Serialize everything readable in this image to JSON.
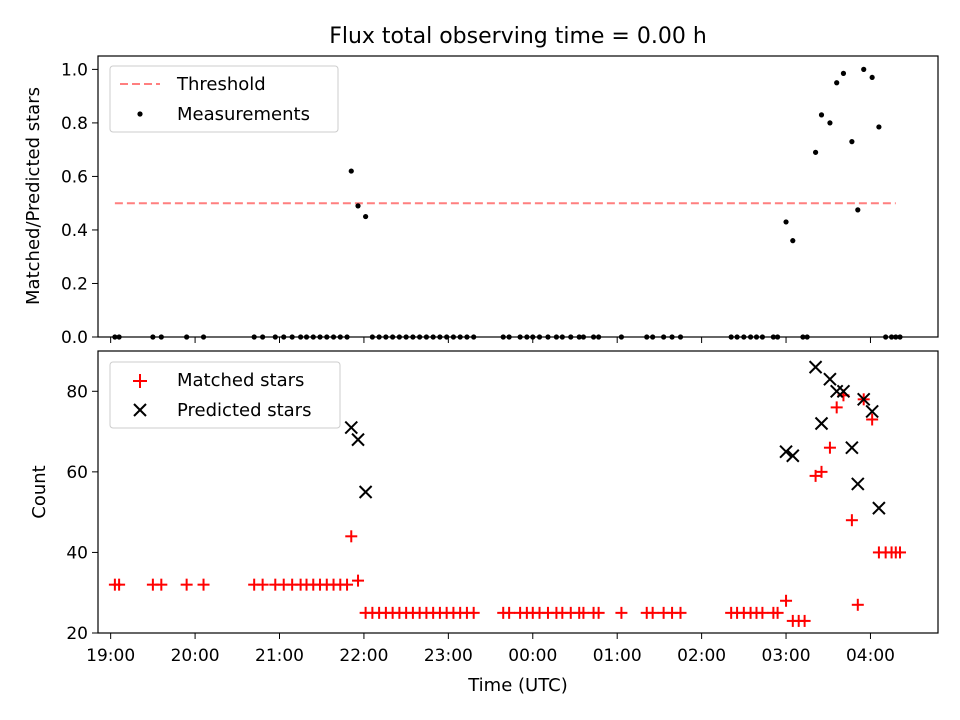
{
  "chart_data": [
    {
      "type": "scatter",
      "title": "Flux total observing time = 0.00 h",
      "xlabel": "",
      "ylabel": "Matched/Predicted stars",
      "xlim": [
        18.85,
        28.8
      ],
      "ylim": [
        0,
        1.05
      ],
      "yticks": [
        0.0,
        0.2,
        0.4,
        0.6,
        0.8,
        1.0
      ],
      "ytick_labels": [
        "0.0",
        "0.2",
        "0.4",
        "0.6",
        "0.8",
        "1.0"
      ],
      "legend_position": "top-left",
      "series": [
        {
          "name": "Threshold",
          "style": "dashed-line",
          "color": "#ff7f7f",
          "x": [
            19.05,
            28.3
          ],
          "y": [
            0.5,
            0.5
          ]
        },
        {
          "name": "Measurements",
          "style": "dot",
          "color": "#000000",
          "x": [
            19.05,
            19.1,
            19.5,
            19.6,
            19.9,
            20.1,
            20.7,
            20.8,
            20.95,
            21.05,
            21.15,
            21.25,
            21.32,
            21.4,
            21.48,
            21.56,
            21.64,
            21.72,
            21.8,
            21.85,
            21.93,
            22.02,
            22.1,
            22.18,
            22.26,
            22.34,
            22.42,
            22.5,
            22.58,
            22.66,
            22.74,
            22.82,
            22.9,
            22.98,
            23.06,
            23.14,
            23.22,
            23.3,
            23.65,
            23.72,
            23.85,
            23.93,
            24.0,
            24.08,
            24.18,
            24.28,
            24.35,
            24.45,
            24.55,
            24.6,
            24.72,
            24.78,
            25.05,
            25.35,
            25.42,
            25.55,
            25.65,
            25.75,
            26.35,
            26.42,
            26.5,
            26.58,
            26.65,
            26.72,
            26.85,
            26.9,
            27.0,
            27.08,
            27.2,
            27.25,
            27.35,
            27.42,
            27.52,
            27.6,
            27.68,
            27.78,
            27.85,
            27.92,
            28.02,
            28.1,
            28.18,
            28.25,
            28.3,
            28.35
          ],
          "y": [
            0,
            0,
            0,
            0,
            0,
            0,
            0,
            0,
            0,
            0,
            0,
            0,
            0,
            0,
            0,
            0,
            0,
            0,
            0,
            0.62,
            0.49,
            0.45,
            0,
            0,
            0,
            0,
            0,
            0,
            0,
            0,
            0,
            0,
            0,
            0,
            0,
            0,
            0,
            0,
            0,
            0,
            0,
            0,
            0,
            0,
            0,
            0,
            0,
            0,
            0,
            0,
            0,
            0,
            0,
            0,
            0,
            0,
            0,
            0,
            0,
            0,
            0,
            0,
            0,
            0,
            0,
            0,
            0.43,
            0.36,
            0,
            0,
            0.69,
            0.83,
            0.8,
            0.95,
            0.985,
            0.73,
            0.475,
            1.0,
            0.97,
            0.785,
            0,
            0,
            0,
            0
          ]
        }
      ]
    },
    {
      "type": "scatter",
      "title": "",
      "xlabel": "Time (UTC)",
      "ylabel": "Count",
      "xlim": [
        18.85,
        28.8
      ],
      "ylim": [
        20,
        90
      ],
      "yticks": [
        20,
        40,
        60,
        80
      ],
      "ytick_labels": [
        "20",
        "40",
        "60",
        "80"
      ],
      "xticks": [
        19,
        20,
        21,
        22,
        23,
        24,
        25,
        26,
        27,
        28
      ],
      "xtick_labels": [
        "19:00",
        "20:00",
        "21:00",
        "22:00",
        "23:00",
        "00:00",
        "01:00",
        "02:00",
        "03:00",
        "04:00"
      ],
      "legend_position": "top-left",
      "series": [
        {
          "name": "Matched stars",
          "marker": "plus",
          "color": "#ff0000",
          "x": [
            19.05,
            19.1,
            19.5,
            19.6,
            19.9,
            20.1,
            20.7,
            20.8,
            20.95,
            21.05,
            21.15,
            21.25,
            21.32,
            21.4,
            21.48,
            21.56,
            21.64,
            21.72,
            21.8,
            21.85,
            21.93,
            22.02,
            22.1,
            22.18,
            22.26,
            22.34,
            22.42,
            22.5,
            22.58,
            22.66,
            22.74,
            22.82,
            22.9,
            22.98,
            23.06,
            23.14,
            23.22,
            23.3,
            23.65,
            23.72,
            23.85,
            23.93,
            24.0,
            24.08,
            24.18,
            24.28,
            24.35,
            24.45,
            24.55,
            24.6,
            24.72,
            24.78,
            25.05,
            25.35,
            25.42,
            25.55,
            25.65,
            25.75,
            26.35,
            26.42,
            26.5,
            26.58,
            26.65,
            26.72,
            26.85,
            26.9,
            27.0,
            27.08,
            27.15,
            27.22,
            27.35,
            27.42,
            27.52,
            27.6,
            27.68,
            27.78,
            27.85,
            27.92,
            28.02,
            28.1,
            28.18,
            28.25,
            28.3,
            28.35
          ],
          "y": [
            32,
            32,
            32,
            32,
            32,
            32,
            32,
            32,
            32,
            32,
            32,
            32,
            32,
            32,
            32,
            32,
            32,
            32,
            32,
            44,
            33,
            25,
            25,
            25,
            25,
            25,
            25,
            25,
            25,
            25,
            25,
            25,
            25,
            25,
            25,
            25,
            25,
            25,
            25,
            25,
            25,
            25,
            25,
            25,
            25,
            25,
            25,
            25,
            25,
            25,
            25,
            25,
            25,
            25,
            25,
            25,
            25,
            25,
            25,
            25,
            25,
            25,
            25,
            25,
            25,
            25,
            28,
            23,
            23,
            23,
            59,
            60,
            66,
            76,
            79,
            48,
            27,
            78,
            73,
            40,
            40,
            40,
            40,
            40
          ]
        },
        {
          "name": "Predicted stars",
          "marker": "x",
          "color": "#000000",
          "x": [
            21.85,
            21.93,
            22.02,
            27.0,
            27.08,
            27.35,
            27.42,
            27.52,
            27.6,
            27.68,
            27.78,
            27.85,
            27.92,
            28.02,
            28.1
          ],
          "y": [
            71,
            68,
            55,
            65,
            64,
            86,
            72,
            83,
            80,
            80,
            66,
            57,
            78,
            75,
            51
          ]
        }
      ]
    }
  ]
}
